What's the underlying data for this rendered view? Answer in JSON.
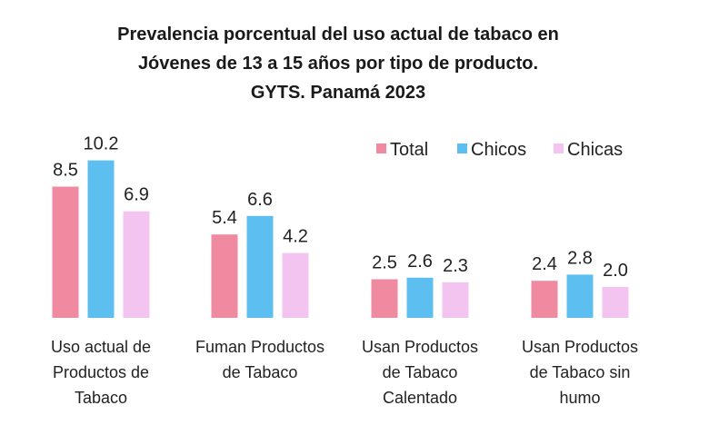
{
  "chart_data": {
    "type": "bar",
    "title": [
      "Prevalencia porcentual del uso actual de tabaco en",
      "Jóvenes de 13 a 15 años por tipo de producto.",
      "GYTS. Panamá 2023"
    ],
    "categories": [
      [
        "Uso actual de",
        "Productos de",
        "Tabaco"
      ],
      [
        "Fuman Productos",
        "de Tabaco"
      ],
      [
        "Usan Productos",
        "de Tabaco",
        "Calentado"
      ],
      [
        "Usan Productos",
        "de Tabaco sin",
        "humo"
      ]
    ],
    "series": [
      {
        "name": "Total",
        "color": "#f08aa0",
        "values": [
          8.5,
          5.4,
          2.5,
          2.4
        ],
        "labels": [
          "8.5",
          "5.4",
          "2.5",
          "2.4"
        ]
      },
      {
        "name": "Chicos",
        "color": "#5cbff0",
        "values": [
          10.2,
          6.6,
          2.6,
          2.8
        ],
        "labels": [
          "10.2",
          "6.6",
          "2.6",
          "2.8"
        ]
      },
      {
        "name": "Chicas",
        "color": "#f4c4f0",
        "values": [
          6.9,
          4.2,
          2.3,
          2.0
        ],
        "labels": [
          "6.9",
          "4.2",
          "2.3",
          "2.0"
        ]
      }
    ],
    "xlabel": "",
    "ylabel": "",
    "ylim": [
      0,
      12
    ],
    "grid": false,
    "axis_visible": false,
    "legend_position": "top-right"
  }
}
